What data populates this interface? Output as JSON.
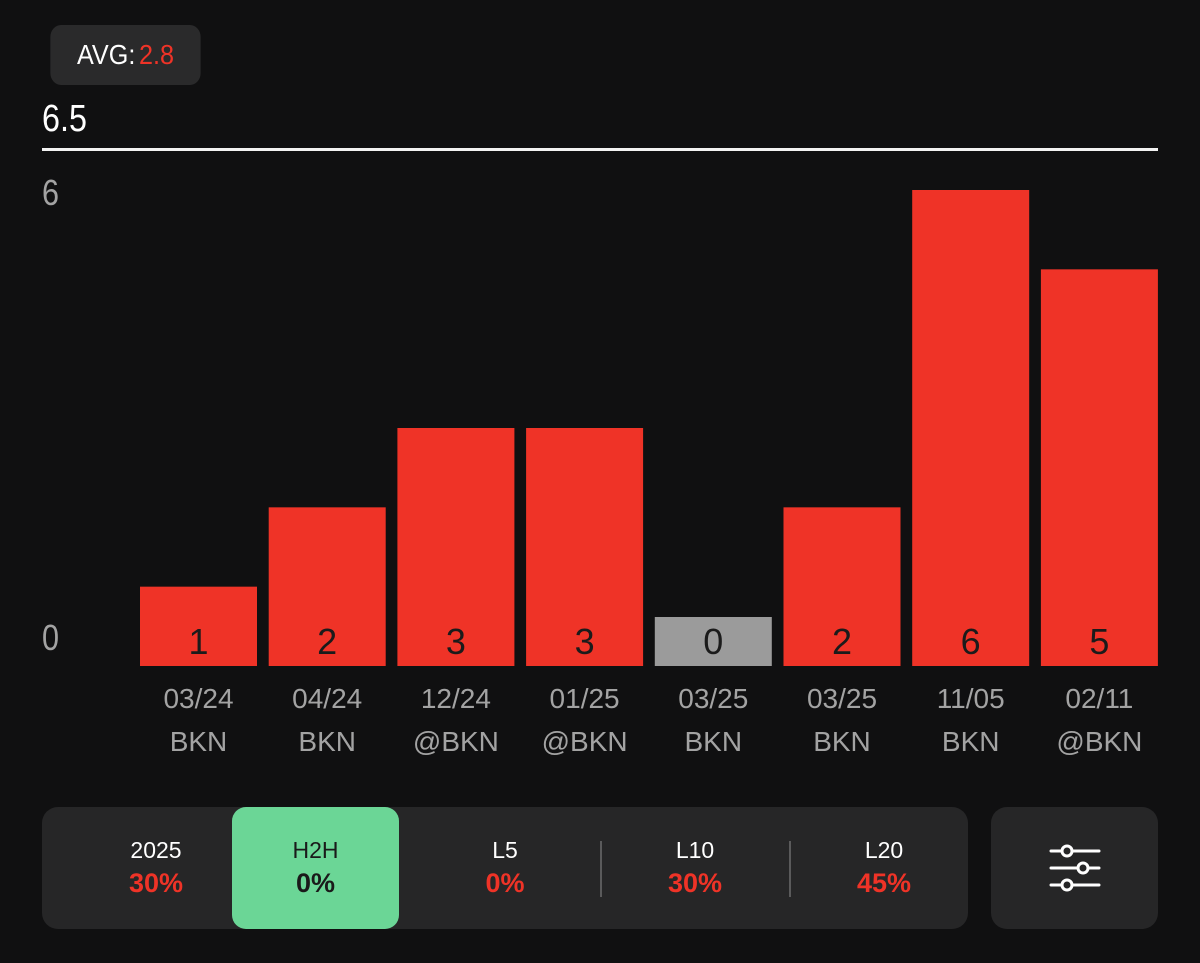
{
  "avg": {
    "label": "AVG:",
    "value": "2.8"
  },
  "line": {
    "value": "6.5"
  },
  "colors": {
    "over": "#ef3327",
    "zero": "#9b9b9b",
    "active_tab": "#6bd696"
  },
  "chart_data": {
    "type": "bar",
    "categories": [
      "03/24 BKN",
      "04/24 BKN",
      "12/24 @BKN",
      "01/25 @BKN",
      "03/25 BKN",
      "03/25 BKN",
      "11/05 BKN",
      "02/11 @BKN"
    ],
    "dates": [
      "03/24",
      "04/24",
      "12/24",
      "01/25",
      "03/25",
      "03/25",
      "11/05",
      "02/11"
    ],
    "opponents": [
      "BKN",
      "BKN",
      "@BKN",
      "@BKN",
      "BKN",
      "BKN",
      "BKN",
      "@BKN"
    ],
    "values": [
      1,
      2,
      3,
      3,
      0,
      2,
      6,
      5
    ],
    "yticks": [
      "6",
      "0"
    ],
    "ylim": [
      0,
      6
    ],
    "reference_line": 6.5,
    "grid": false
  },
  "filters": {
    "tabs": [
      {
        "label": "2025",
        "value": "30%",
        "active": false
      },
      {
        "label": "H2H",
        "value": "0%",
        "active": true
      },
      {
        "label": "L5",
        "value": "0%",
        "active": false
      },
      {
        "label": "L10",
        "value": "30%",
        "active": false
      },
      {
        "label": "L20",
        "value": "45%",
        "active": false
      }
    ],
    "settings_icon": "sliders-icon"
  }
}
